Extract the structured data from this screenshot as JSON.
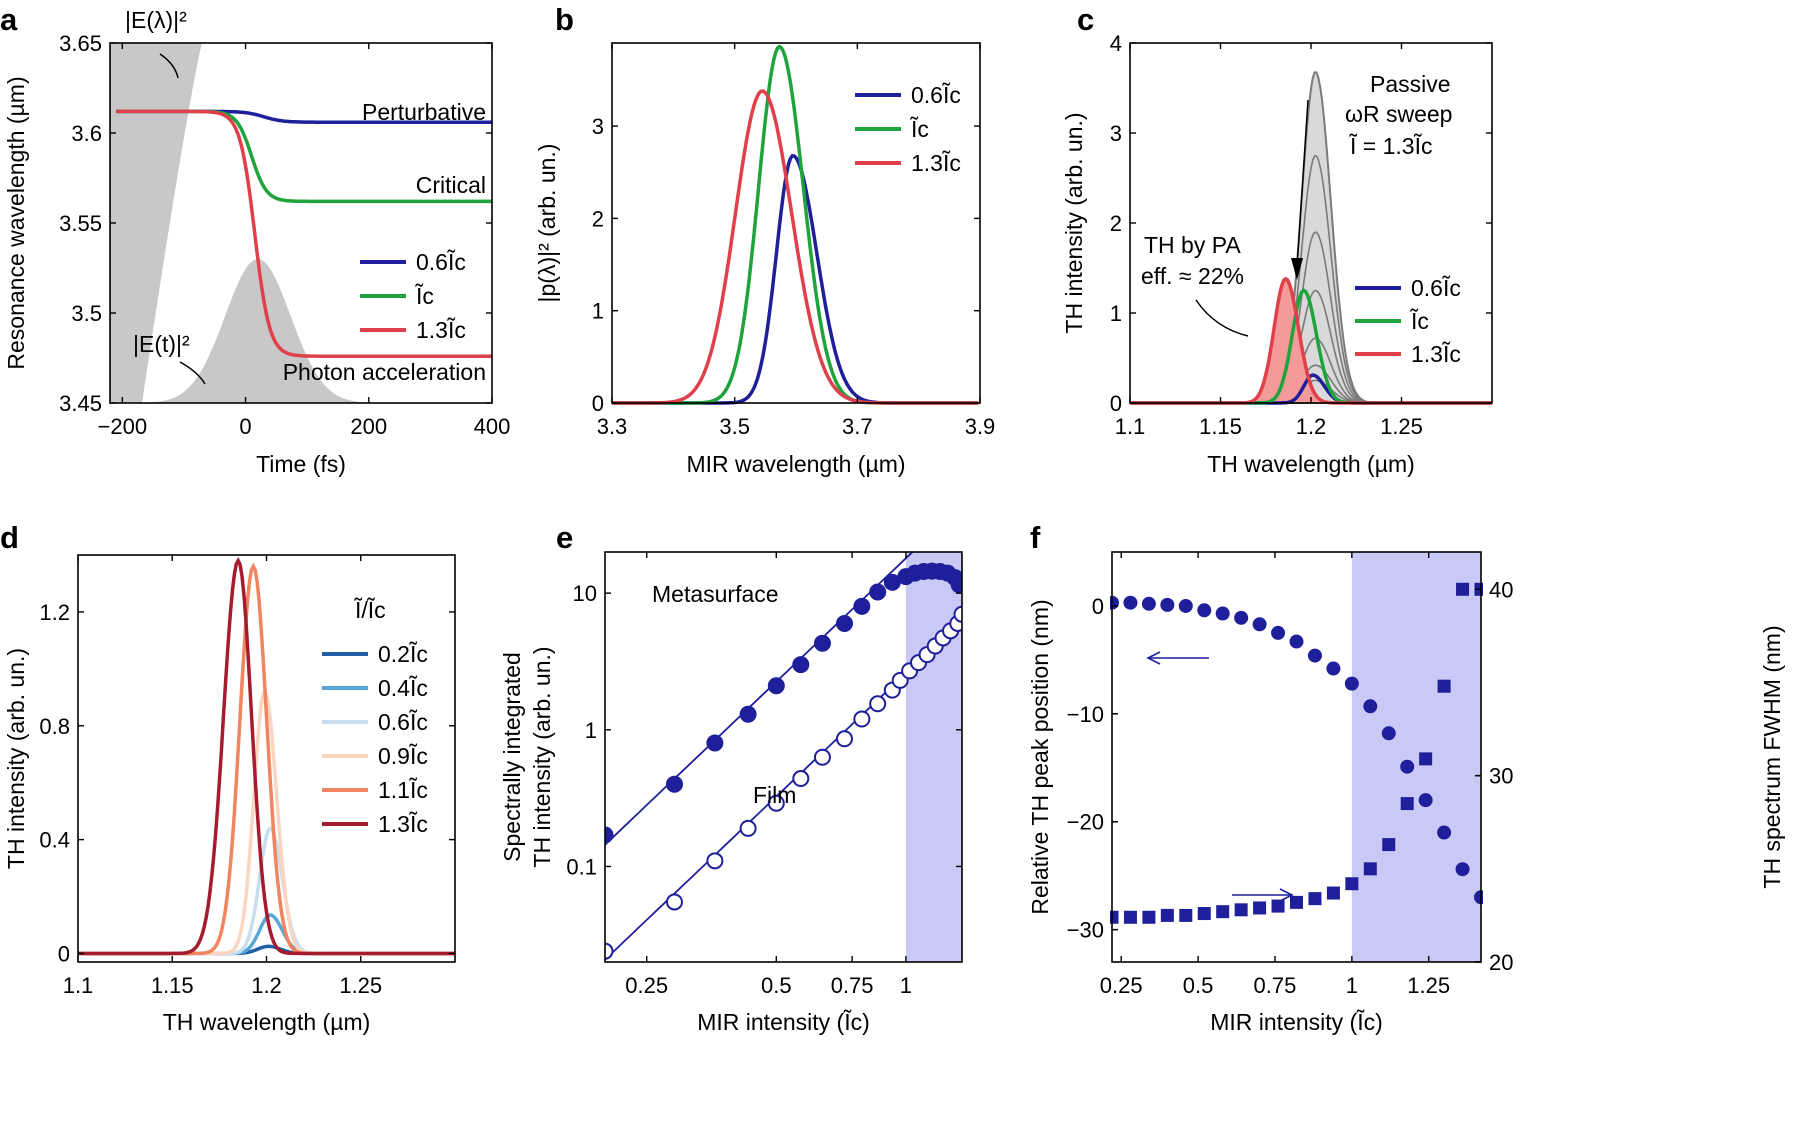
{
  "colors": {
    "blue": "#1f1f9c",
    "green": "#1fa43c",
    "red": "#e0404a",
    "gray": "#c8c8c8",
    "shade": "#c9c9f5"
  },
  "chart_data": [
    {
      "panel": "a",
      "type": "line",
      "xlabel": "Time (fs)",
      "ylabel": "Resonance wavelength (µm)",
      "xlim": [
        -220,
        400
      ],
      "ylim": [
        3.45,
        3.65
      ],
      "xticks": [
        "−200",
        "0",
        "200",
        "400"
      ],
      "xtick_values": [
        -200,
        0,
        200,
        400
      ],
      "yticks": [
        "3.45",
        "3.5",
        "3.55",
        "3.6",
        "3.65"
      ],
      "ytick_values": [
        3.45,
        3.5,
        3.55,
        3.6,
        3.65
      ],
      "series": [
        {
          "name": "0.6Ĩc",
          "color": "#1f1f9c",
          "start": 3.612,
          "end": 3.606,
          "t0": 30,
          "w": 15
        },
        {
          "name": "Ĩc",
          "color": "#1fa43c",
          "start": 3.612,
          "end": 3.562,
          "t0": 10,
          "w": 12
        },
        {
          "name": "1.3Ĩc",
          "color": "#e0404a",
          "start": 3.612,
          "end": 3.476,
          "t0": 15,
          "w": 12
        }
      ],
      "annotations": [
        "Perturbative",
        "Critical",
        "Photon acceleration",
        "|E(λ)|²",
        "|E(t)|²"
      ],
      "legend": [
        "0.6Ĩc",
        "Ĩc",
        "1.3Ĩc"
      ]
    },
    {
      "panel": "b",
      "type": "line",
      "xlabel": "MIR wavelength (µm)",
      "ylabel": "|p(λ)|² (arb. un.)",
      "xlim": [
        3.3,
        3.9
      ],
      "ylim": [
        0,
        3.9
      ],
      "xticks": [
        "3.3",
        "3.5",
        "3.7",
        "3.9"
      ],
      "xtick_values": [
        3.3,
        3.5,
        3.7,
        3.9
      ],
      "yticks": [
        "0",
        "1",
        "2",
        "3"
      ],
      "ytick_values": [
        0,
        1,
        2,
        3
      ],
      "series": [
        {
          "name": "0.6Ĩc",
          "color": "#1f1f9c",
          "peak": 3.595,
          "amp": 2.68,
          "wl": 0.038,
          "wr": 0.055
        },
        {
          "name": "Ĩc",
          "color": "#1fa43c",
          "peak": 3.573,
          "amp": 3.86,
          "wl": 0.048,
          "wr": 0.055
        },
        {
          "name": "1.3Ĩc",
          "color": "#e0404a",
          "peak": 3.545,
          "amp": 3.38,
          "wl": 0.062,
          "wr": 0.068
        }
      ],
      "legend": [
        "0.6Ĩc",
        "Ĩc",
        "1.3Ĩc"
      ]
    },
    {
      "panel": "c",
      "type": "line",
      "xlabel": "TH wavelength (µm)",
      "ylabel": "TH intensity (arb. un.)",
      "xlim": [
        1.1,
        1.3
      ],
      "ylim": [
        0,
        4
      ],
      "xticks": [
        "1.1",
        "1.15",
        "1.2",
        "1.25"
      ],
      "xtick_values": [
        1.1,
        1.15,
        1.2,
        1.25
      ],
      "yticks": [
        "0",
        "1",
        "2",
        "3",
        "4"
      ],
      "ytick_values": [
        0,
        1,
        2,
        3,
        4
      ],
      "passive_sweep_amplitudes": [
        3.68,
        2.75,
        1.9,
        1.25,
        0.72,
        0.42,
        0.25
      ],
      "series": [
        {
          "name": "0.6Ĩc",
          "color": "#1f1f9c",
          "peak": 1.201,
          "amp": 0.31,
          "wl": 0.007,
          "wr": 0.009
        },
        {
          "name": "Ĩc",
          "color": "#1fa43c",
          "peak": 1.196,
          "amp": 1.25,
          "wl": 0.009,
          "wr": 0.01
        },
        {
          "name": "1.3Ĩc",
          "color": "#e0404a",
          "peak": 1.186,
          "amp": 1.38,
          "wl": 0.009,
          "wr": 0.01
        }
      ],
      "annotations": [
        "Passive",
        "ωR sweep",
        "Ĩ = 1.3Ĩc",
        "TH by PA",
        "eff. ≈ 22%"
      ],
      "legend": [
        "0.6Ĩc",
        "Ĩc",
        "1.3Ĩc"
      ]
    },
    {
      "panel": "d",
      "type": "line",
      "xlabel": "TH wavelength (µm)",
      "ylabel": "TH intensity (arb. un.)",
      "xlim": [
        1.1,
        1.3
      ],
      "ylim": [
        0,
        1.4
      ],
      "xticks": [
        "1.1",
        "1.15",
        "1.2",
        "1.25"
      ],
      "xtick_values": [
        1.1,
        1.15,
        1.2,
        1.25
      ],
      "yticks": [
        "0",
        "0.4",
        "0.8",
        "1.2"
      ],
      "ytick_values": [
        0,
        0.4,
        0.8,
        1.2
      ],
      "legend_title": "Ĩ/Ĩc",
      "series": [
        {
          "name": "0.2Ĩc",
          "color": "#1e5fa8",
          "peak": 1.201,
          "amp": 0.025,
          "wl": 0.008,
          "wr": 0.009
        },
        {
          "name": "0.4Ĩc",
          "color": "#5aa7d6",
          "peak": 1.202,
          "amp": 0.135,
          "wl": 0.008,
          "wr": 0.009
        },
        {
          "name": "0.6Ĩc",
          "color": "#c7deef",
          "peak": 1.202,
          "amp": 0.44,
          "wl": 0.008,
          "wr": 0.009
        },
        {
          "name": "0.9Ĩc",
          "color": "#fbd5c0",
          "peak": 1.199,
          "amp": 0.92,
          "wl": 0.008,
          "wr": 0.009
        },
        {
          "name": "1.1Ĩc",
          "color": "#f0855f",
          "peak": 1.193,
          "amp": 1.36,
          "wl": 0.01,
          "wr": 0.01
        },
        {
          "name": "1.3Ĩc",
          "color": "#a51c2e",
          "peak": 1.185,
          "amp": 1.38,
          "wl": 0.011,
          "wr": 0.01
        }
      ],
      "legend": [
        "0.2Ĩc",
        "0.4Ĩc",
        "0.6Ĩc",
        "0.9Ĩc",
        "1.1Ĩc",
        "1.3Ĩc"
      ]
    },
    {
      "panel": "e",
      "type": "scatter",
      "xlabel": "MIR intensity (Ĩc)",
      "ylabel": "Spectrally integrated TH intensity (arb. un.)",
      "xscale": "log",
      "yscale": "log",
      "xlim": [
        0.2,
        1.35
      ],
      "ylim": [
        0.02,
        20
      ],
      "xticks": [
        "0.25",
        "0.5",
        "0.75",
        "1"
      ],
      "xtick_values": [
        0.25,
        0.5,
        0.75,
        1
      ],
      "yticks": [
        "0.1",
        "1",
        "10"
      ],
      "ytick_values": [
        0.1,
        1,
        10
      ],
      "shaded_from": 1,
      "series": [
        {
          "name": "Metasurface",
          "marker": "filled-circle",
          "x": [
            0.2,
            0.29,
            0.36,
            0.43,
            0.5,
            0.57,
            0.64,
            0.72,
            0.79,
            0.86,
            0.93,
            1.0,
            1.05,
            1.1,
            1.15,
            1.2,
            1.25,
            1.3,
            1.33
          ],
          "y": [
            0.17,
            0.4,
            0.8,
            1.3,
            2.1,
            3.0,
            4.3,
            6.0,
            8.0,
            10.2,
            12.0,
            13.2,
            14.0,
            14.4,
            14.5,
            14.4,
            14.0,
            13.0,
            11.5
          ]
        },
        {
          "name": "Film",
          "marker": "open-circle",
          "x": [
            0.2,
            0.29,
            0.36,
            0.43,
            0.5,
            0.57,
            0.64,
            0.72,
            0.79,
            0.86,
            0.93,
            0.97,
            1.02,
            1.07,
            1.12,
            1.17,
            1.22,
            1.27,
            1.32,
            1.35
          ],
          "y": [
            0.024,
            0.055,
            0.11,
            0.19,
            0.29,
            0.44,
            0.63,
            0.86,
            1.2,
            1.55,
            1.95,
            2.3,
            2.7,
            3.1,
            3.55,
            4.1,
            4.7,
            5.3,
            6.0,
            7.0
          ]
        }
      ],
      "fits": [
        {
          "series": "Metasurface",
          "a": 18.0,
          "b": 3
        },
        {
          "series": "Film",
          "a": 2.6,
          "b": 3
        }
      ],
      "annotations": [
        "Metasurface",
        "Film"
      ]
    },
    {
      "panel": "f",
      "type": "scatter",
      "xlabel": "MIR intensity (Ĩc)",
      "ylabel": "Relative TH peak position (nm)",
      "y2label": "TH spectrum FWHM (nm)",
      "xlim": [
        0.22,
        1.42
      ],
      "ylim": [
        -33,
        5
      ],
      "y2lim": [
        20,
        42
      ],
      "xticks": [
        "0.25",
        "0.5",
        "0.75",
        "1",
        "1.25"
      ],
      "xtick_values": [
        0.25,
        0.5,
        0.75,
        1,
        1.25
      ],
      "yticks": [
        "0",
        "−10",
        "−20",
        "−30"
      ],
      "ytick_values": [
        0,
        -10,
        -20,
        -30
      ],
      "y2ticks": [
        "20",
        "30",
        "40"
      ],
      "y2tick_values": [
        20,
        30,
        40
      ],
      "shaded_from": 1,
      "series": [
        {
          "name": "Relative TH peak position",
          "axis": "left",
          "marker": "filled-circle",
          "x": [
            0.22,
            0.28,
            0.34,
            0.4,
            0.46,
            0.52,
            0.58,
            0.64,
            0.7,
            0.76,
            0.82,
            0.88,
            0.94,
            1.0,
            1.06,
            1.12,
            1.18,
            1.24,
            1.3,
            1.36,
            1.42
          ],
          "y": [
            0.3,
            0.3,
            0.2,
            0.1,
            0.0,
            -0.4,
            -0.7,
            -1.1,
            -1.7,
            -2.5,
            -3.3,
            -4.6,
            -5.8,
            -7.2,
            -9.3,
            -11.8,
            -14.9,
            -18.0,
            -21.0,
            -24.4,
            -27.0
          ]
        },
        {
          "name": "TH spectrum FWHM",
          "axis": "right",
          "marker": "filled-square",
          "x": [
            0.22,
            0.28,
            0.34,
            0.4,
            0.46,
            0.52,
            0.58,
            0.64,
            0.7,
            0.76,
            0.82,
            0.88,
            0.94,
            1.0,
            1.06,
            1.12,
            1.18,
            1.24,
            1.3,
            1.36,
            1.42
          ],
          "y": [
            22.4,
            22.4,
            22.4,
            22.5,
            22.5,
            22.6,
            22.7,
            22.8,
            22.9,
            23.0,
            23.2,
            23.4,
            23.7,
            24.2,
            25.0,
            26.3,
            28.5,
            30.9,
            34.8,
            40.0,
            40.0
          ]
        }
      ]
    }
  ]
}
